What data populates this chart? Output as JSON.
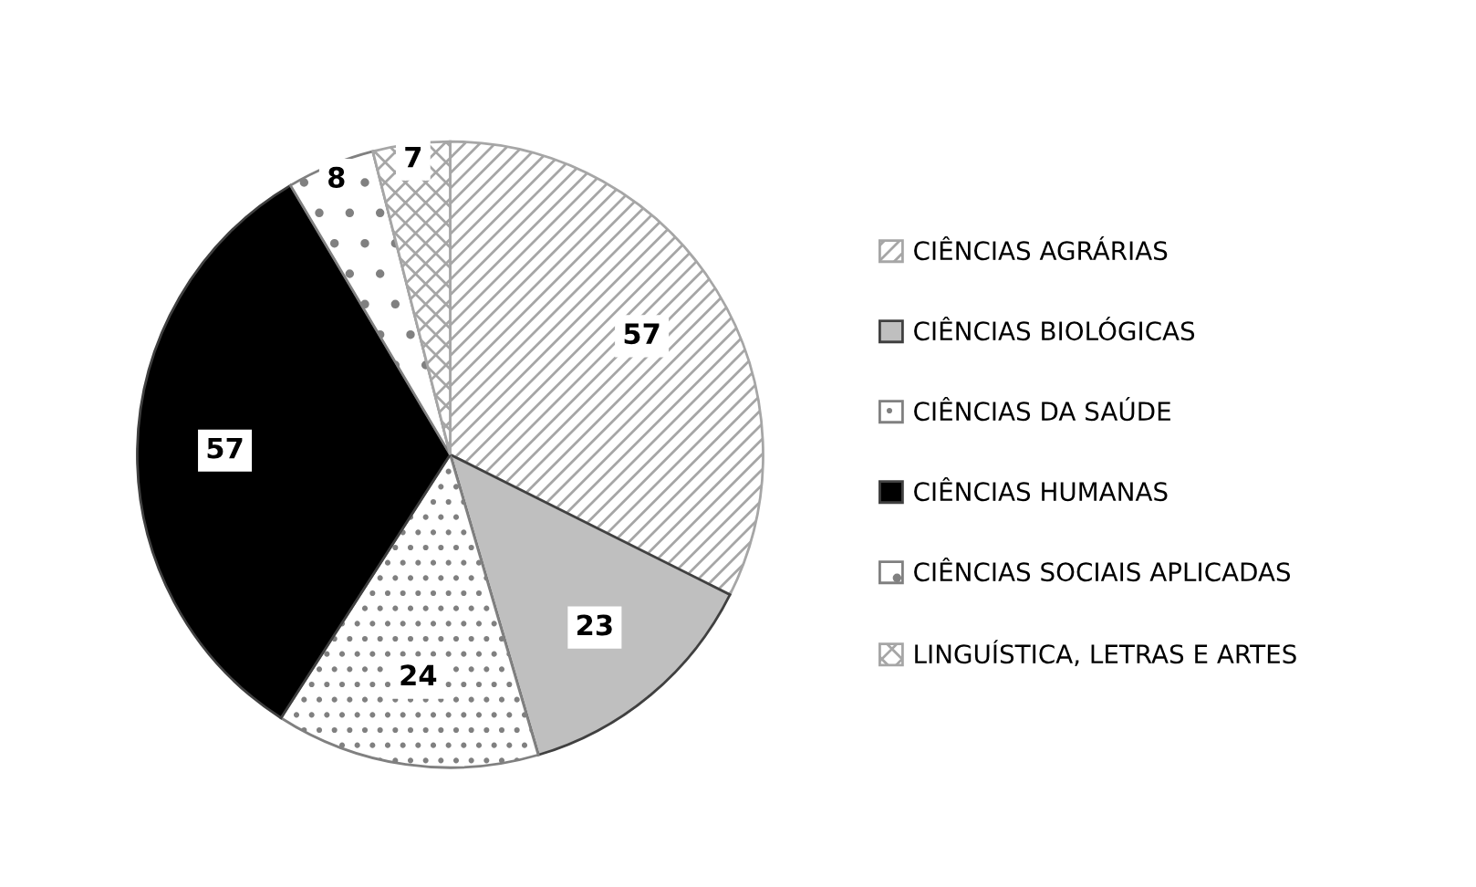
{
  "chart_data": {
    "type": "pie",
    "categories": [
      "CIÊNCIAS AGRÁRIAS",
      "CIÊNCIAS BIOLÓGICAS",
      "CIÊNCIAS DA SAÚDE",
      "CIÊNCIAS HUMANAS",
      "CIÊNCIAS SOCIAIS APLICADAS",
      "LINGUÍSTICA, LETRAS E ARTES"
    ],
    "values": [
      57,
      23,
      24,
      57,
      8,
      7
    ],
    "colors": [
      "#a6a6a6",
      "#bfbfbf",
      "#808080",
      "#000000",
      "#808080",
      "#a6a6a6"
    ],
    "data_labels": true,
    "legend": "right"
  }
}
